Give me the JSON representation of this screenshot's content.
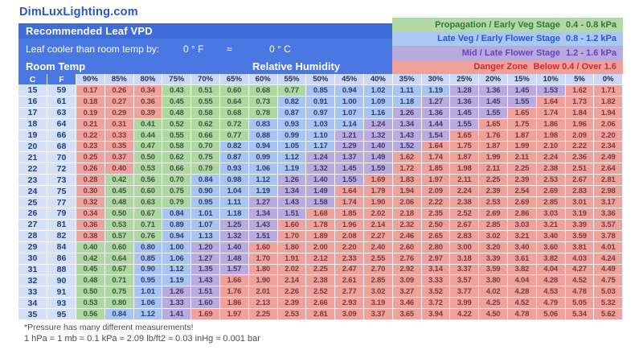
{
  "page": {
    "site_title": "DimLuxLighting.com"
  },
  "header": {
    "banner_title": "Recommended Leaf VPD",
    "leaf_offset_label": "Leaf cooler than room temp by:",
    "offset_f": "0 ° F",
    "approx_symbol": "≈",
    "offset_c": "0 ° C",
    "room_temp_label": "Room Temp",
    "rh_label": "Relative Humidity"
  },
  "legend": {
    "items": [
      {
        "label": "Propagation / Early Veg Stage",
        "range": "0.4 - 0.8 kPa",
        "zone": "green"
      },
      {
        "label": "Late Veg / Early Flower Stage",
        "range": "0.8 - 1.2 kPa",
        "zone": "blue"
      },
      {
        "label": "Mid / Late Flower Stage",
        "range": "1.2 - 1.6 kPa",
        "zone": "purple"
      },
      {
        "label": "Danger Zone",
        "range": "Below 0.4 / Over 1.6",
        "zone": "red"
      }
    ]
  },
  "colors": {
    "banner_blue": "#4a78e2",
    "banner_strip_blue": "#3e6cd9",
    "title_blue": "#2a55cb",
    "zone_green": "#aed7a2",
    "zone_blue": "#a9c4f0",
    "zone_purple": "#b9abde",
    "zone_red": "#efa19b",
    "temp_col_bg": "#d3e0f7",
    "rh_header_bg": "#ccd8f4"
  },
  "chart_data": {
    "type": "heatmap",
    "title": "Recommended Leaf VPD",
    "unit": "kPa",
    "x_label": "Relative Humidity",
    "y_label": "Room Temp",
    "y_columns": [
      "C",
      "F"
    ],
    "columns": [
      "90%",
      "85%",
      "80%",
      "75%",
      "70%",
      "65%",
      "60%",
      "55%",
      "50%",
      "45%",
      "40%",
      "35%",
      "30%",
      "25%",
      "20%",
      "15%",
      "10%",
      "5%",
      "0%"
    ],
    "zone_order": [
      "red",
      "green",
      "blue",
      "purple",
      "red"
    ],
    "zone_ranges": {
      "green": "0.4 - 0.8 kPa",
      "blue": "0.8 - 1.2 kPa",
      "purple": "1.2 - 1.6 kPa",
      "red": "Below 0.4 / Over 1.6"
    },
    "rows": [
      {
        "c": 15,
        "f": 59,
        "values": [
          "0.17",
          "0.26",
          "0.34",
          "0.43",
          "0.51",
          "0.60",
          "0.68",
          "0.77",
          "0.85",
          "0.94",
          "1.02",
          "1.11",
          "1.19",
          "1.28",
          "1.36",
          "1.45",
          "1.53",
          "1.62",
          "1.71"
        ],
        "zone_counts": [
          3,
          5,
          5,
          4,
          2
        ]
      },
      {
        "c": 16,
        "f": 61,
        "values": [
          "0.18",
          "0.27",
          "0.36",
          "0.45",
          "0.55",
          "0.64",
          "0.73",
          "0.82",
          "0.91",
          "1.00",
          "1.09",
          "1.18",
          "1.27",
          "1.36",
          "1.45",
          "1.55",
          "1.64",
          "1.73",
          "1.82"
        ],
        "zone_counts": [
          3,
          4,
          5,
          4,
          3
        ]
      },
      {
        "c": 17,
        "f": 63,
        "values": [
          "0.19",
          "0.29",
          "0.39",
          "0.48",
          "0.58",
          "0.68",
          "0.78",
          "0.87",
          "0.97",
          "1.07",
          "1.16",
          "1.26",
          "1.36",
          "1.45",
          "1.55",
          "1.65",
          "1.74",
          "1.84",
          "1.94"
        ],
        "zone_counts": [
          3,
          4,
          4,
          4,
          4
        ]
      },
      {
        "c": 18,
        "f": 64,
        "values": [
          "0.21",
          "0.31",
          "0.41",
          "0.52",
          "0.62",
          "0.72",
          "0.83",
          "0.93",
          "1.03",
          "1.14",
          "1.24",
          "1.34",
          "1.44",
          "1.55",
          "1.65",
          "1.75",
          "1.86",
          "1.96",
          "2.06"
        ],
        "zone_counts": [
          2,
          4,
          4,
          4,
          5
        ]
      },
      {
        "c": 19,
        "f": 66,
        "values": [
          "0.22",
          "0.33",
          "0.44",
          "0.55",
          "0.66",
          "0.77",
          "0.88",
          "0.99",
          "1.10",
          "1.21",
          "1.32",
          "1.43",
          "1.54",
          "1.65",
          "1.76",
          "1.87",
          "1.98",
          "2.09",
          "2.20"
        ],
        "zone_counts": [
          2,
          4,
          3,
          4,
          6
        ]
      },
      {
        "c": 20,
        "f": 68,
        "values": [
          "0.23",
          "0.35",
          "0.47",
          "0.58",
          "0.70",
          "0.82",
          "0.94",
          "1.05",
          "1.17",
          "1.29",
          "1.40",
          "1.52",
          "1.64",
          "1.75",
          "1.87",
          "1.99",
          "2.10",
          "2.22",
          "2.34"
        ],
        "zone_counts": [
          2,
          3,
          4,
          3,
          7
        ]
      },
      {
        "c": 21,
        "f": 70,
        "values": [
          "0.25",
          "0.37",
          "0.50",
          "0.62",
          "0.75",
          "0.87",
          "0.99",
          "1.12",
          "1.24",
          "1.37",
          "1.49",
          "1.62",
          "1.74",
          "1.87",
          "1.99",
          "2.11",
          "2.24",
          "2.36",
          "2.49"
        ],
        "zone_counts": [
          2,
          3,
          3,
          3,
          8
        ]
      },
      {
        "c": 22,
        "f": 72,
        "values": [
          "0.26",
          "0.40",
          "0.53",
          "0.66",
          "0.79",
          "0.93",
          "1.06",
          "1.19",
          "1.32",
          "1.45",
          "1.59",
          "1.72",
          "1.85",
          "1.98",
          "2.11",
          "2.25",
          "2.38",
          "2.51",
          "2.64"
        ],
        "zone_counts": [
          2,
          3,
          3,
          3,
          8
        ]
      },
      {
        "c": 23,
        "f": 73,
        "values": [
          "0.28",
          "0.42",
          "0.56",
          "0.70",
          "0.84",
          "0.98",
          "1.12",
          "1.26",
          "1.40",
          "1.55",
          "1.69",
          "1.83",
          "1.97",
          "2.11",
          "2.25",
          "2.39",
          "2.53",
          "2.67",
          "2.81"
        ],
        "zone_counts": [
          1,
          3,
          3,
          3,
          9
        ]
      },
      {
        "c": 24,
        "f": 75,
        "values": [
          "0.30",
          "0.45",
          "0.60",
          "0.75",
          "0.90",
          "1.04",
          "1.19",
          "1.34",
          "1.49",
          "1.64",
          "1.79",
          "1.94",
          "2.09",
          "2.24",
          "2.39",
          "2.54",
          "2.69",
          "2.83",
          "2.98"
        ],
        "zone_counts": [
          1,
          3,
          3,
          2,
          10
        ]
      },
      {
        "c": 25,
        "f": 77,
        "values": [
          "0.32",
          "0.48",
          "0.63",
          "0.79",
          "0.95",
          "1.11",
          "1.27",
          "1.43",
          "1.58",
          "1.74",
          "1.90",
          "2.06",
          "2.22",
          "2.38",
          "2.53",
          "2.69",
          "2.85",
          "3.01",
          "3.17"
        ],
        "zone_counts": [
          1,
          3,
          2,
          3,
          10
        ]
      },
      {
        "c": 26,
        "f": 79,
        "values": [
          "0.34",
          "0.50",
          "0.67",
          "0.84",
          "1.01",
          "1.18",
          "1.34",
          "1.51",
          "1.68",
          "1.85",
          "2.02",
          "2.18",
          "2.35",
          "2.52",
          "2.69",
          "2.86",
          "3.03",
          "3.19",
          "3.36"
        ],
        "zone_counts": [
          1,
          2,
          3,
          2,
          11
        ]
      },
      {
        "c": 27,
        "f": 81,
        "values": [
          "0.36",
          "0.53",
          "0.71",
          "0.89",
          "1.07",
          "1.25",
          "1.43",
          "1.60",
          "1.78",
          "1.96",
          "2.14",
          "2.32",
          "2.50",
          "2.67",
          "2.85",
          "3.03",
          "3.21",
          "3.39",
          "3.57"
        ],
        "zone_counts": [
          1,
          2,
          2,
          2,
          12
        ]
      },
      {
        "c": 28,
        "f": 82,
        "values": [
          "0.38",
          "0.57",
          "0.76",
          "0.94",
          "1.13",
          "1.32",
          "1.51",
          "1.70",
          "1.89",
          "2.08",
          "2.27",
          "2.46",
          "2.65",
          "2.83",
          "3.02",
          "3.21",
          "3.40",
          "3.59",
          "3.78"
        ],
        "zone_counts": [
          1,
          2,
          2,
          2,
          12
        ]
      },
      {
        "c": 29,
        "f": 84,
        "values": [
          "0.40",
          "0.60",
          "0.80",
          "1.00",
          "1.20",
          "1.40",
          "1.60",
          "1.80",
          "2.00",
          "2.20",
          "2.40",
          "2.60",
          "2.80",
          "3.00",
          "3.20",
          "3.40",
          "3.60",
          "3.81",
          "4.01"
        ],
        "zone_counts": [
          0,
          2,
          2,
          2,
          13
        ]
      },
      {
        "c": 30,
        "f": 86,
        "values": [
          "0.42",
          "0.64",
          "0.85",
          "1.06",
          "1.27",
          "1.48",
          "1.70",
          "1.91",
          "2.12",
          "2.33",
          "2.55",
          "2.76",
          "2.97",
          "3.18",
          "3.39",
          "3.61",
          "3.82",
          "4.03",
          "4.24"
        ],
        "zone_counts": [
          0,
          2,
          2,
          2,
          13
        ]
      },
      {
        "c": 31,
        "f": 88,
        "values": [
          "0.45",
          "0.67",
          "0.90",
          "1.12",
          "1.35",
          "1.57",
          "1.80",
          "2.02",
          "2.25",
          "2.47",
          "2.70",
          "2.92",
          "3.14",
          "3.37",
          "3.59",
          "3.82",
          "4.04",
          "4.27",
          "4.49"
        ],
        "zone_counts": [
          0,
          2,
          2,
          2,
          13
        ]
      },
      {
        "c": 32,
        "f": 90,
        "values": [
          "0.48",
          "0.71",
          "0.95",
          "1.19",
          "1.43",
          "1.66",
          "1.90",
          "2.14",
          "2.38",
          "2.61",
          "2.85",
          "3.09",
          "3.33",
          "3.57",
          "3.80",
          "4.04",
          "4.28",
          "4.52",
          "4.75"
        ],
        "zone_counts": [
          0,
          2,
          2,
          1,
          14
        ]
      },
      {
        "c": 33,
        "f": 91,
        "values": [
          "0.50",
          "0.75",
          "1.01",
          "1.26",
          "1.51",
          "1.76",
          "2.01",
          "2.26",
          "2.52",
          "2.77",
          "3.02",
          "3.27",
          "3.52",
          "3.77",
          "4.02",
          "4.28",
          "4.53",
          "4.78",
          "5.03"
        ],
        "zone_counts": [
          0,
          2,
          1,
          2,
          14
        ]
      },
      {
        "c": 34,
        "f": 93,
        "values": [
          "0.53",
          "0.80",
          "1.06",
          "1.33",
          "1.60",
          "1.86",
          "2.13",
          "2.39",
          "2.66",
          "2.93",
          "3.19",
          "3.46",
          "3.72",
          "3.99",
          "4.25",
          "4.52",
          "4.79",
          "5.05",
          "5.32"
        ],
        "zone_counts": [
          0,
          2,
          1,
          2,
          14
        ]
      },
      {
        "c": 35,
        "f": 95,
        "values": [
          "0.56",
          "0.84",
          "1.12",
          "1.41",
          "1.69",
          "1.97",
          "2.25",
          "2.53",
          "2.81",
          "3.09",
          "3.37",
          "3.65",
          "3.94",
          "4.22",
          "4.50",
          "4.78",
          "5.06",
          "5.34",
          "5.62"
        ],
        "zone_counts": [
          0,
          1,
          2,
          1,
          15
        ]
      }
    ]
  },
  "footer": {
    "line1": "*Pressure has many different measurements!",
    "line2": "1 hPa = 1 mb = 0.1 kPa ≈ 2.09 lb/ft2 ≈ 0.03 inHg ≈ 0.001 bar"
  }
}
